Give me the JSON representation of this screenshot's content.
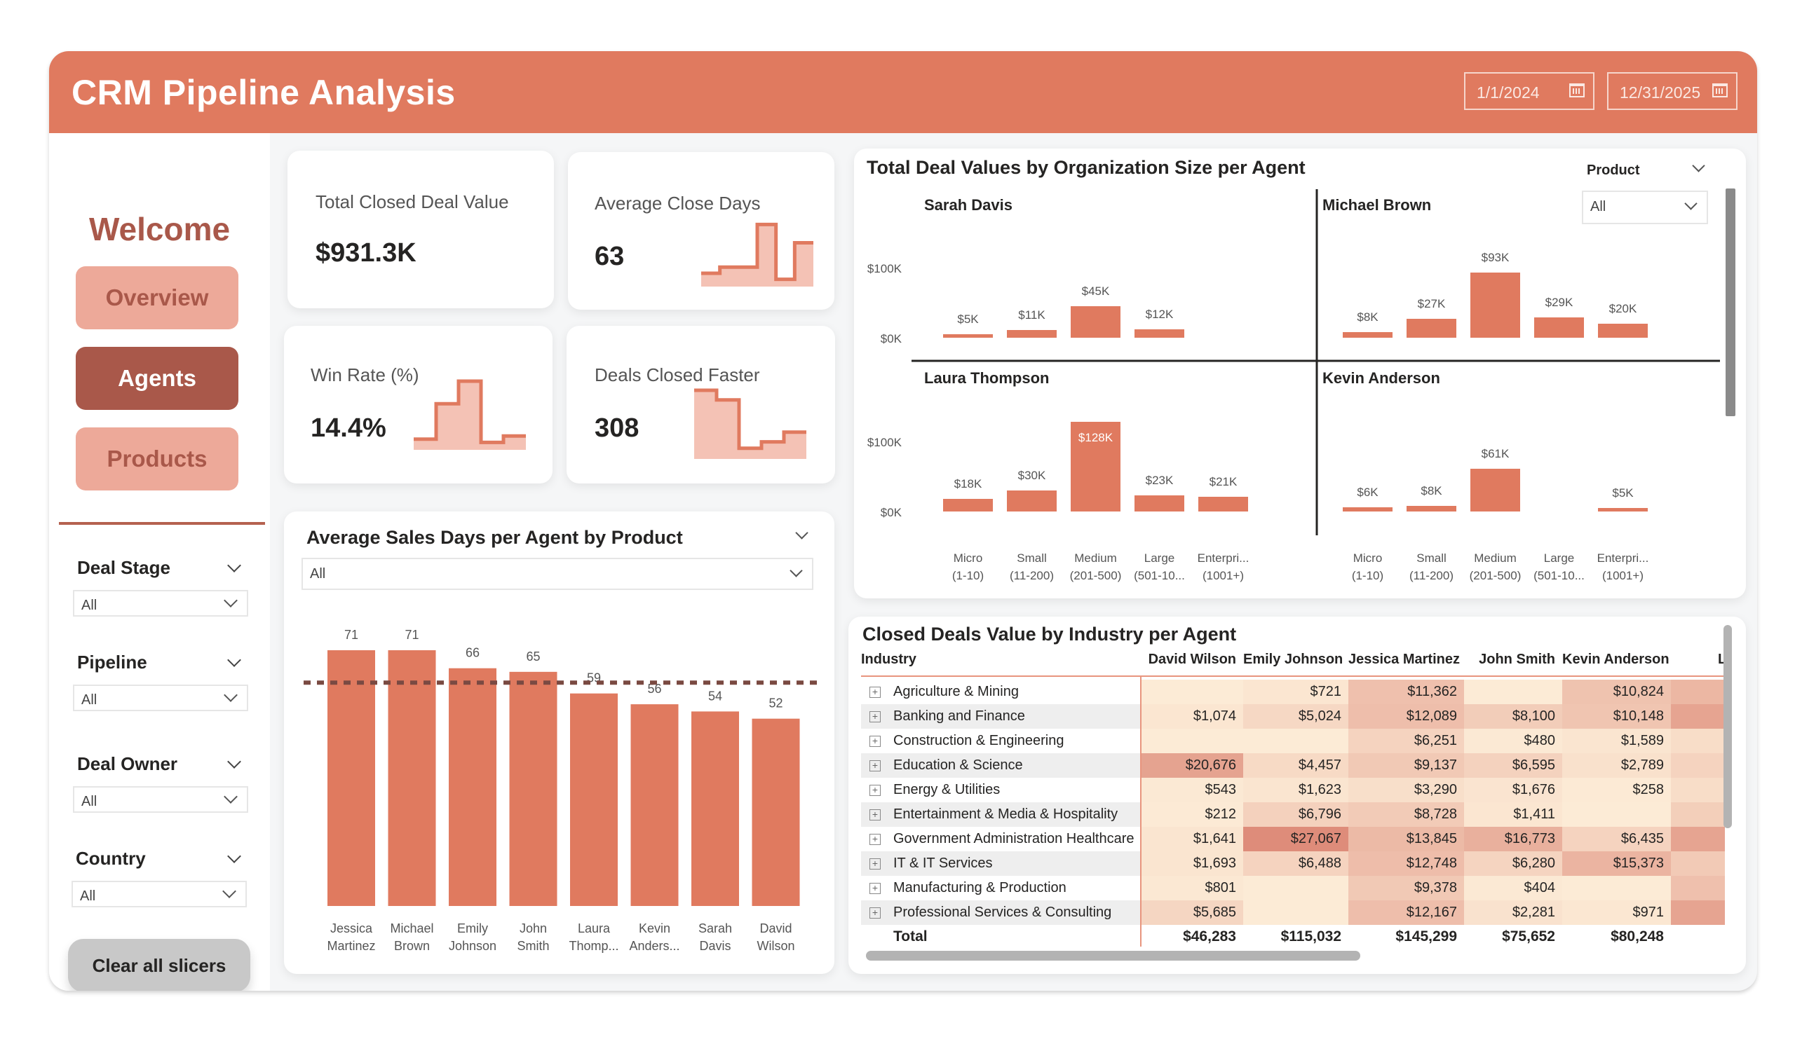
{
  "header": {
    "title": "CRM Pipeline Analysis",
    "date_start": "1/1/2024",
    "date_end": "12/31/2025"
  },
  "sidebar": {
    "welcome": "Welcome",
    "nav": [
      {
        "label": "Overview",
        "active": false
      },
      {
        "label": "Agents",
        "active": true
      },
      {
        "label": "Products",
        "active": false
      }
    ],
    "slicers": [
      {
        "title": "Deal Stage",
        "value": "All"
      },
      {
        "title": "Pipeline",
        "value": "All"
      },
      {
        "title": "Deal Owner",
        "value": "All"
      },
      {
        "title": "Country",
        "value": "All"
      }
    ],
    "clear_label": "Clear all slicers"
  },
  "kpis": [
    {
      "label": "Total Closed Deal Value",
      "value": "$931.3K",
      "spark": []
    },
    {
      "label": "Average Close Days",
      "value": "63",
      "spark": [
        0.15,
        0.25,
        0.25,
        0.95,
        0.05,
        0.65
      ]
    },
    {
      "label": "Win Rate (%)",
      "value": "14.4%",
      "spark": [
        0.1,
        0.65,
        1.0,
        0.05,
        0.15
      ]
    },
    {
      "label": "Deals Closed Faster",
      "value": "308",
      "spark": [
        1.0,
        0.85,
        0.1,
        0.2,
        0.35
      ]
    }
  ],
  "colors": {
    "accent": "#e07a5f",
    "accent_dark": "#a9584a",
    "accent_light": "#eda999",
    "spark_fill": "#f4c2b5",
    "avg_line": "#7a4a42"
  },
  "chart_data": [
    {
      "type": "bar",
      "title": "Average Sales Days per Agent by Product",
      "filter_value": "All",
      "categories": [
        "Jessica Martinez",
        "Michael Brown",
        "Emily Johnson",
        "John Smith",
        "Laura Thomp...",
        "Kevin Anders...",
        "Sarah Davis",
        "David Wilson"
      ],
      "category_lines": [
        [
          "Jessica",
          "Martinez"
        ],
        [
          "Michael",
          "Brown"
        ],
        [
          "Emily",
          "Johnson"
        ],
        [
          "John",
          "Smith"
        ],
        [
          "Laura",
          "Thomp..."
        ],
        [
          "Kevin",
          "Anders..."
        ],
        [
          "Sarah",
          "Davis"
        ],
        [
          "David",
          "Wilson"
        ]
      ],
      "values": [
        71,
        71,
        66,
        65,
        59,
        56,
        54,
        52
      ],
      "average_line": 62,
      "ylim": [
        0,
        75
      ],
      "xlabel": "",
      "ylabel": ""
    },
    {
      "type": "bar",
      "title": "Total Deal Values by Organization Size per Agent",
      "filter": {
        "label": "Product",
        "value": "All"
      },
      "categories": [
        "Micro (1-10)",
        "Small (11-200)",
        "Medium (201-500)",
        "Large (501-10...",
        "Enterpri... (1001+)"
      ],
      "category_lines": [
        [
          "Micro",
          "(1-10)"
        ],
        [
          "Small",
          "(11-200)"
        ],
        [
          "Medium",
          "(201-500)"
        ],
        [
          "Large",
          "(501-10..."
        ],
        [
          "Enterpri...",
          "(1001+)"
        ]
      ],
      "y_ticks": [
        "$100K",
        "$0K"
      ],
      "ylim": [
        0,
        130
      ],
      "panels": [
        {
          "name": "Sarah Davis",
          "values": [
            5,
            11,
            45,
            12,
            null
          ],
          "labels": [
            "$5K",
            "$11K",
            "$45K",
            "$12K",
            ""
          ]
        },
        {
          "name": "Michael Brown",
          "values": [
            8,
            27,
            93,
            29,
            20
          ],
          "labels": [
            "$8K",
            "$27K",
            "$93K",
            "$29K",
            "$20K"
          ]
        },
        {
          "name": "Laura Thompson",
          "values": [
            18,
            30,
            128,
            23,
            21
          ],
          "labels": [
            "$18K",
            "$30K",
            "$128K",
            "$23K",
            "$21K"
          ]
        },
        {
          "name": "Kevin Anderson",
          "values": [
            6,
            8,
            61,
            null,
            5
          ],
          "labels": [
            "$6K",
            "$8K",
            "$61K",
            "",
            "$5K"
          ]
        }
      ]
    },
    {
      "type": "table",
      "title": "Closed Deals Value by Industry per Agent",
      "columns": [
        "Industry",
        "David Wilson",
        "Emily Johnson",
        "Jessica Martinez",
        "John Smith",
        "Kevin Anderson",
        "L"
      ],
      "rows": [
        {
          "industry": "Agriculture & Mining",
          "values": [
            "",
            "$721",
            "$11,362",
            "",
            "$10,824"
          ],
          "heat": [
            0,
            0.05,
            0.45,
            0,
            0.42
          ]
        },
        {
          "industry": "Banking and Finance",
          "values": [
            "$1,074",
            "$5,024",
            "$12,089",
            "$8,100",
            "$10,148"
          ],
          "heat": [
            0.05,
            0.2,
            0.47,
            0.32,
            0.4
          ]
        },
        {
          "industry": "Construction & Engineering",
          "values": [
            "",
            "",
            "$6,251",
            "$480",
            "$1,589"
          ],
          "heat": [
            0,
            0,
            0.25,
            0.02,
            0.06
          ]
        },
        {
          "industry": "Education & Science",
          "values": [
            "$20,676",
            "$4,457",
            "$9,137",
            "$6,595",
            "$2,789"
          ],
          "heat": [
            0.76,
            0.18,
            0.36,
            0.26,
            0.11
          ]
        },
        {
          "industry": "Energy & Utilities",
          "values": [
            "$543",
            "$1,623",
            "$3,290",
            "$1,676",
            "$258"
          ],
          "heat": [
            0.02,
            0.06,
            0.13,
            0.07,
            0.01
          ]
        },
        {
          "industry": "Entertainment & Media & Hospitality",
          "values": [
            "$212",
            "$6,796",
            "$8,728",
            "$1,411",
            ""
          ],
          "heat": [
            0.01,
            0.27,
            0.34,
            0.05,
            0
          ]
        },
        {
          "industry": "Government Administration Healthcare",
          "values": [
            "$1,641",
            "$27,067",
            "$13,845",
            "$16,773",
            "$6,435"
          ],
          "heat": [
            0.06,
            1.0,
            0.52,
            0.62,
            0.25
          ]
        },
        {
          "industry": "IT & IT Services",
          "values": [
            "$1,693",
            "$6,488",
            "$12,748",
            "$6,280",
            "$15,373"
          ],
          "heat": [
            0.06,
            0.25,
            0.48,
            0.24,
            0.58
          ]
        },
        {
          "industry": "Manufacturing & Production",
          "values": [
            "$801",
            "",
            "$9,378",
            "$404",
            ""
          ],
          "heat": [
            0.03,
            0,
            0.36,
            0.02,
            0
          ]
        },
        {
          "industry": "Professional Services & Consulting",
          "values": [
            "$5,685",
            "",
            "$12,167",
            "$2,281",
            "$971"
          ],
          "heat": [
            0.22,
            0,
            0.47,
            0.09,
            0.04
          ]
        }
      ],
      "extra_col_heat": [
        0.55,
        0.75,
        0.15,
        0.25,
        0.15,
        0.3,
        0.75,
        0.35,
        0.45,
        0.75
      ],
      "total": {
        "label": "Total",
        "values": [
          "$46,283",
          "$115,032",
          "$145,299",
          "$75,652",
          "$80,248"
        ]
      }
    }
  ]
}
